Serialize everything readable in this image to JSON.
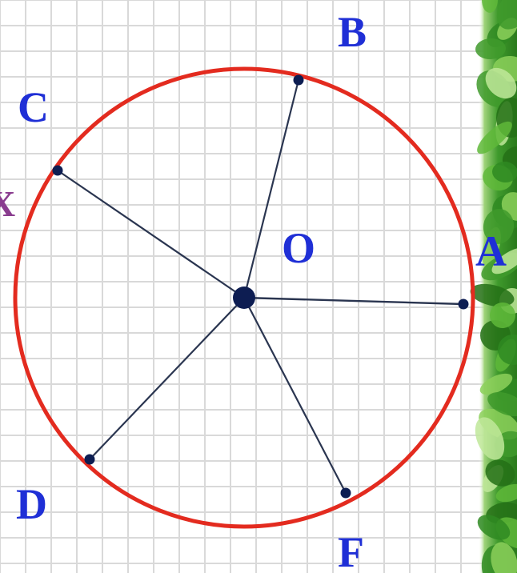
{
  "center": {
    "label": "O"
  },
  "points": [
    {
      "id": "A",
      "label": "A"
    },
    {
      "id": "B",
      "label": "B"
    },
    {
      "id": "C",
      "label": "C"
    },
    {
      "id": "D",
      "label": "D"
    },
    {
      "id": "F",
      "label": "F"
    }
  ],
  "edge_glyph": "X",
  "colors": {
    "circle": "#e32b1f",
    "radius_line": "#2a3550",
    "point": "#0d1d52",
    "label": "#1f2fd6",
    "grid": "#d9d9d9",
    "foliage": "#3f9a2c"
  }
}
